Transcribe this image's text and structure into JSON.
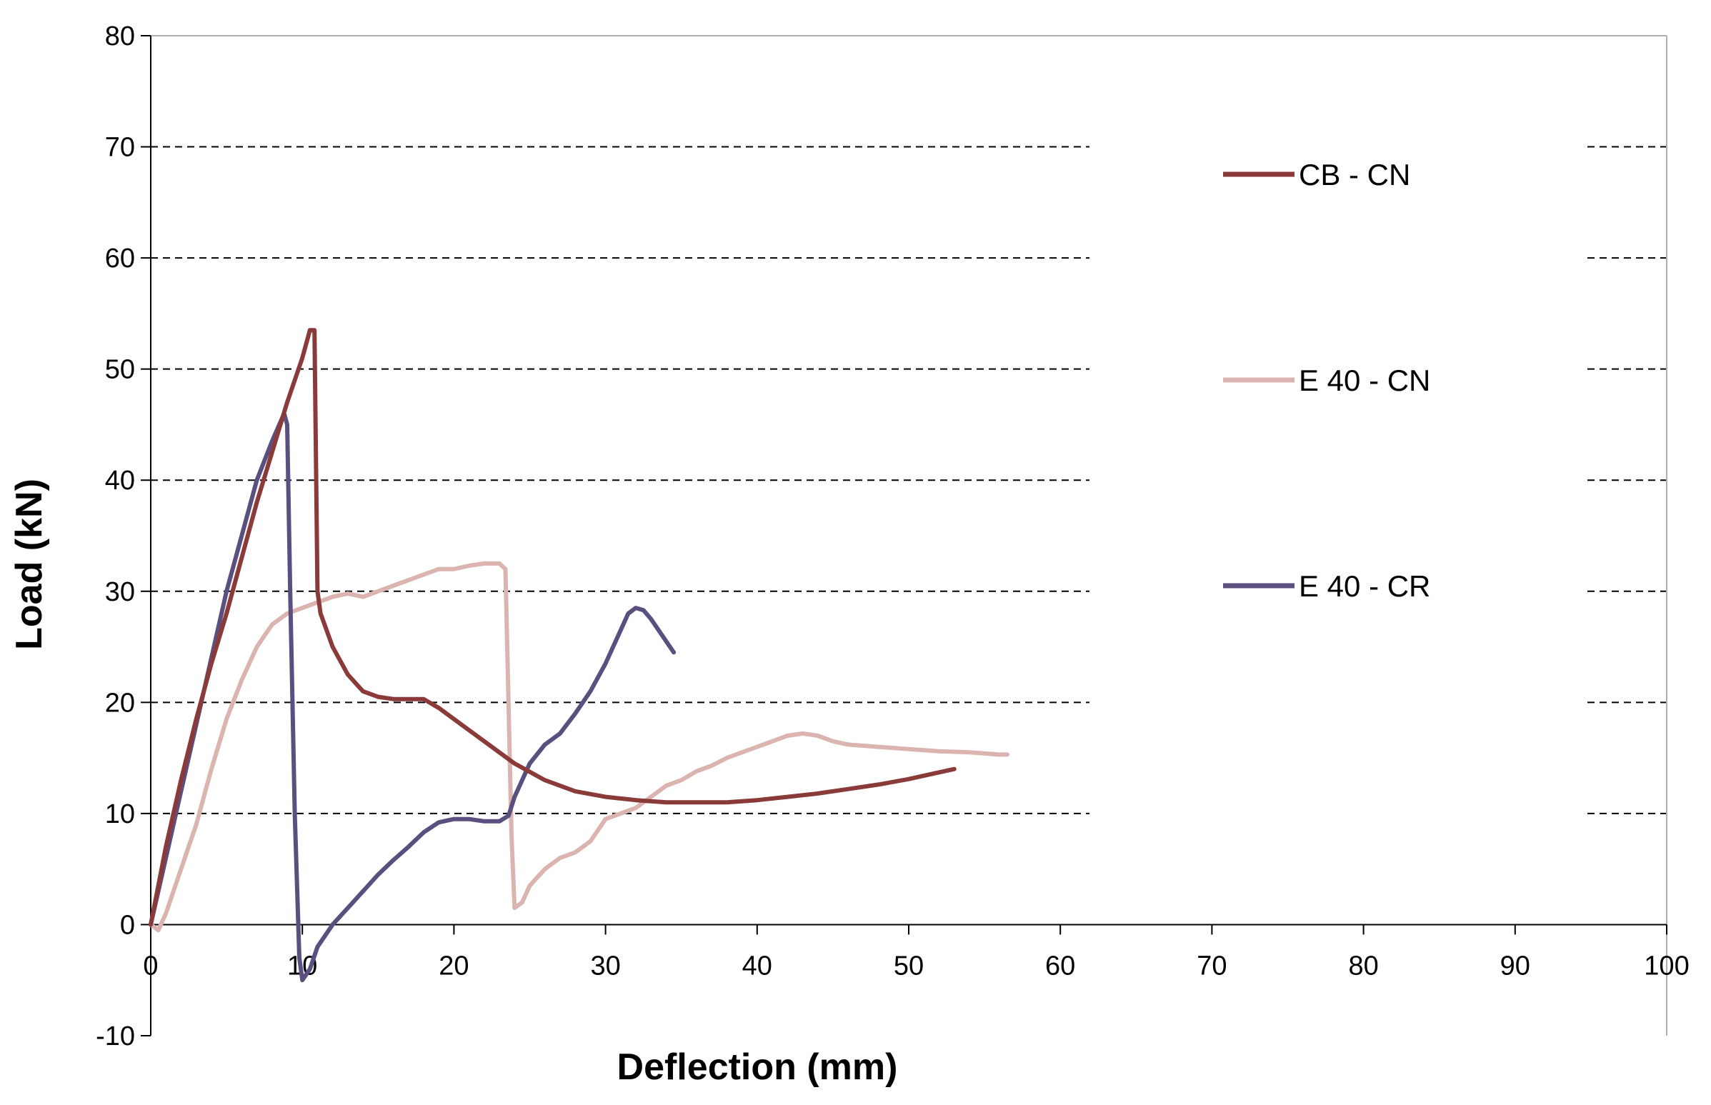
{
  "chart_data": {
    "type": "line",
    "title": "",
    "xlabel": "Deflection (mm)",
    "ylabel": "Load (kN)",
    "xlim": [
      0,
      100
    ],
    "ylim": [
      -10,
      80
    ],
    "xticks": [
      0,
      10,
      20,
      30,
      40,
      50,
      60,
      70,
      80,
      90,
      100
    ],
    "yticks": [
      -10,
      0,
      10,
      20,
      30,
      40,
      50,
      60,
      70,
      80
    ],
    "gridlines": "horizontal dashed at 10 to 70 (hidden behind legend between x ≈ 62 and 94)",
    "legend_position": "right",
    "series": [
      {
        "name": "CB - CN",
        "color": "#8b3a3a",
        "x": [
          0,
          1,
          2,
          3,
          4,
          5,
          6,
          7,
          8,
          9,
          10,
          10.5,
          10.8,
          11,
          11.2,
          12,
          13,
          14,
          15,
          16,
          17,
          18,
          19,
          20,
          22,
          24,
          26,
          28,
          30,
          32,
          34,
          36,
          38,
          40,
          42,
          44,
          46,
          48,
          50,
          52,
          53
        ],
        "y": [
          0,
          7,
          13,
          18.5,
          23.5,
          28,
          33,
          38,
          42.5,
          47,
          51,
          53.5,
          53.5,
          30,
          28,
          25,
          22.5,
          21,
          20.5,
          20.3,
          20.3,
          20.3,
          19.5,
          18.5,
          16.5,
          14.5,
          13,
          12,
          11.5,
          11.2,
          11,
          11,
          11,
          11.2,
          11.5,
          11.8,
          12.2,
          12.6,
          13.1,
          13.7,
          14
        ]
      },
      {
        "name": "E 40 - CN",
        "color": "#dbb4b0",
        "x": [
          0,
          0.5,
          1,
          2,
          3,
          4,
          5,
          6,
          7,
          8,
          9,
          10,
          11,
          12,
          13,
          14,
          15,
          16,
          17,
          18,
          19,
          20,
          21,
          22,
          23,
          23.4,
          23.6,
          23.8,
          24,
          24.5,
          25,
          26,
          27,
          28,
          29,
          30,
          31,
          32,
          33,
          34,
          35,
          36,
          37,
          38,
          39,
          40,
          41,
          42,
          43,
          44,
          45,
          46,
          48,
          50,
          52,
          54,
          56,
          56.5
        ],
        "y": [
          0,
          -0.5,
          1,
          5,
          9,
          14,
          18.5,
          22,
          25,
          27,
          28,
          28.5,
          29,
          29.5,
          29.8,
          29.5,
          30,
          30.5,
          31,
          31.5,
          32,
          32,
          32.3,
          32.5,
          32.5,
          32,
          20,
          8,
          1.5,
          2,
          3.5,
          5,
          6,
          6.5,
          7.5,
          9.5,
          10,
          10.5,
          11.5,
          12.5,
          13,
          13.8,
          14.3,
          15,
          15.5,
          16,
          16.5,
          17,
          17.2,
          17,
          16.5,
          16.2,
          16,
          15.8,
          15.6,
          15.5,
          15.3,
          15.3
        ]
      },
      {
        "name": "E 40 - CR",
        "color": "#5a4f7f",
        "x": [
          0,
          1,
          2,
          3,
          4,
          5,
          6,
          7,
          8,
          8.8,
          9,
          9.2,
          9.5,
          9.8,
          10,
          10.5,
          11,
          12,
          13,
          14,
          15,
          16,
          17,
          18,
          19,
          20,
          21,
          22,
          23,
          23.6,
          24,
          25,
          26,
          27,
          28,
          29,
          30,
          31,
          31.5,
          32,
          32.5,
          33,
          34,
          34.5
        ],
        "y": [
          0,
          6,
          12,
          18,
          24,
          30,
          35,
          40,
          43.5,
          46,
          45,
          30,
          10,
          -3,
          -5,
          -4,
          -2,
          0,
          1.5,
          3,
          4.5,
          5.8,
          7,
          8.3,
          9.2,
          9.5,
          9.5,
          9.3,
          9.3,
          9.8,
          11.5,
          14.5,
          16.2,
          17.2,
          19,
          21,
          23.5,
          26.5,
          28,
          28.5,
          28.3,
          27.5,
          25.5,
          24.5
        ]
      }
    ]
  }
}
